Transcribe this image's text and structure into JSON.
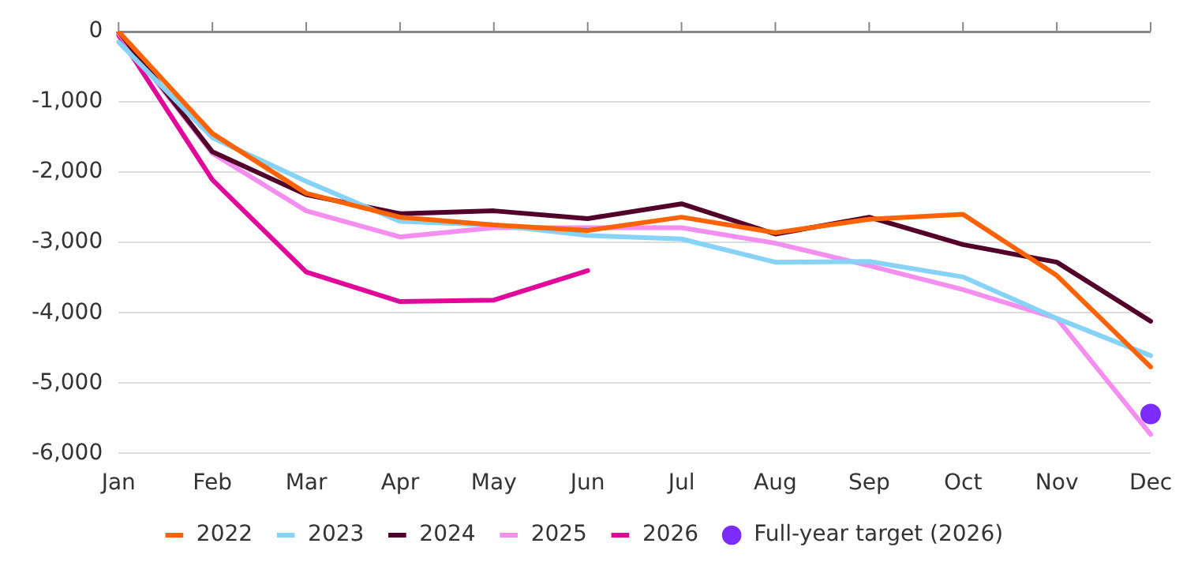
{
  "chart_data": {
    "type": "line",
    "categories": [
      "Jan",
      "Feb",
      "Mar",
      "Apr",
      "May",
      "Jun",
      "Jul",
      "Aug",
      "Sep",
      "Oct",
      "Nov",
      "Dec"
    ],
    "series": [
      {
        "name": "2022",
        "color": "#ff6200",
        "values": [
          0,
          -1450,
          -2300,
          -2640,
          -2750,
          -2830,
          -2640,
          -2860,
          -2670,
          -2600,
          -3470,
          -4770
        ]
      },
      {
        "name": "2023",
        "color": "#87d2f7",
        "values": [
          -150,
          -1510,
          -2130,
          -2700,
          -2750,
          -2900,
          -2950,
          -3280,
          -3270,
          -3490,
          -4080,
          -4610
        ]
      },
      {
        "name": "2024",
        "color": "#52002a",
        "values": [
          0,
          -1710,
          -2320,
          -2590,
          -2550,
          -2660,
          -2450,
          -2880,
          -2640,
          -3030,
          -3280,
          -4120
        ]
      },
      {
        "name": "2025",
        "color": "#f48ef0",
        "values": [
          -20,
          -1730,
          -2550,
          -2920,
          -2790,
          -2790,
          -2790,
          -3010,
          -3330,
          -3670,
          -4080,
          -5730
        ]
      },
      {
        "name": "2026",
        "color": "#e0079a",
        "values": [
          -50,
          -2110,
          -3420,
          -3840,
          -3820,
          -3400,
          null,
          null,
          null,
          null,
          null,
          null
        ]
      },
      {
        "name": "Full-year target (2026)",
        "type": "scatter",
        "color": "#7b2cff",
        "x": [
          "Dec"
        ],
        "values": [
          -5440
        ],
        "marker": "circle"
      }
    ],
    "ylim": [
      -6000,
      0
    ],
    "yticks": [
      {
        "value": -6000,
        "label": "-6,000"
      },
      {
        "value": -5000,
        "label": "-5,000"
      },
      {
        "value": -4000,
        "label": "-4,000"
      },
      {
        "value": -3000,
        "label": "-3,000"
      },
      {
        "value": -2000,
        "label": "-2,000"
      },
      {
        "value": -1000,
        "label": "-1,000"
      },
      0
    ],
    "grid": "y",
    "legend": "bottom",
    "marker": "none",
    "line_style": "solid"
  }
}
